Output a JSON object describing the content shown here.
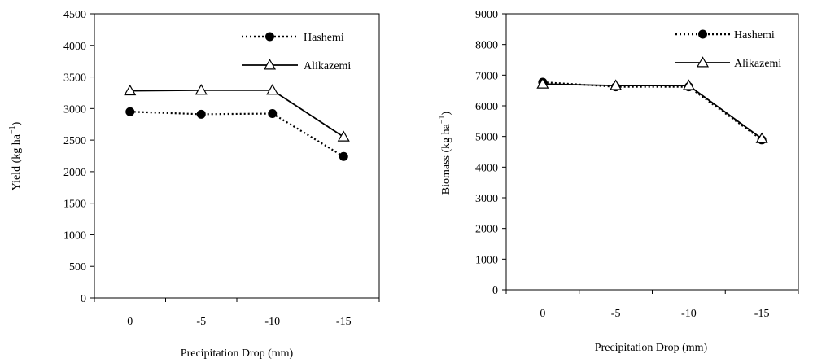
{
  "chart_data": [
    {
      "type": "line",
      "xlabel": "Precipitation Drop (mm)",
      "ylabel": "Yield (kg ha",
      "ylabel_sup": "−1",
      "ylabel_close": ")",
      "categories": [
        "0",
        "-5",
        "-10",
        "-15"
      ],
      "ylim": [
        0,
        4500
      ],
      "yticks": [
        0,
        500,
        1000,
        1500,
        2000,
        2500,
        3000,
        3500,
        4000,
        4500
      ],
      "grid": false,
      "legend_position": "top-right",
      "series": [
        {
          "name": "Hashemi",
          "values": [
            2950,
            2910,
            2920,
            2240
          ],
          "style": "dotted",
          "marker": "filled-circle",
          "color": "#000000"
        },
        {
          "name": "Alikazemi",
          "values": [
            3280,
            3290,
            3290,
            2550
          ],
          "style": "solid",
          "marker": "open-triangle",
          "color": "#000000"
        }
      ]
    },
    {
      "type": "line",
      "xlabel": "Precipitation Drop (mm)",
      "ylabel": "Biomass (kg ha",
      "ylabel_sup": "−1",
      "ylabel_close": ")",
      "categories": [
        "0",
        "-5",
        "-10",
        "-15"
      ],
      "ylim": [
        0,
        9000
      ],
      "yticks": [
        0,
        1000,
        2000,
        3000,
        4000,
        5000,
        6000,
        7000,
        8000,
        9000
      ],
      "grid": false,
      "legend_position": "top-right",
      "series": [
        {
          "name": "Hashemi",
          "values": [
            6770,
            6620,
            6620,
            4890
          ],
          "style": "dotted",
          "marker": "filled-circle",
          "color": "#000000"
        },
        {
          "name": "Alikazemi",
          "values": [
            6710,
            6660,
            6660,
            4930
          ],
          "style": "solid",
          "marker": "open-triangle",
          "color": "#000000"
        }
      ]
    }
  ]
}
